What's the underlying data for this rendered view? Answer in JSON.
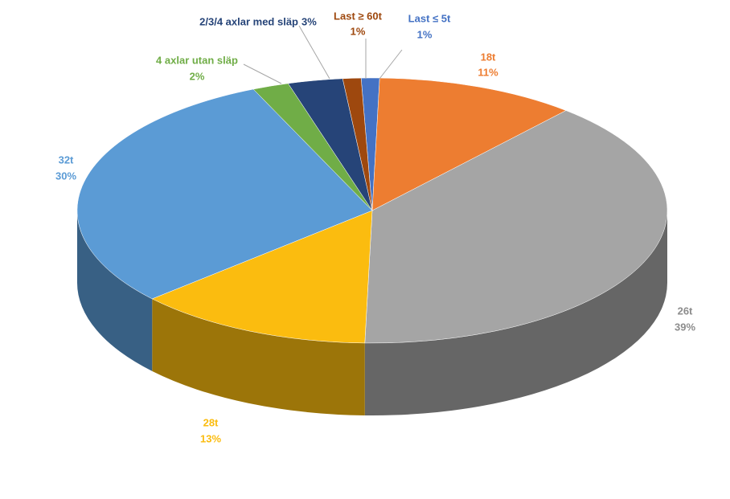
{
  "chart_data": {
    "type": "pie",
    "categories": [
      "Last ≤ 5t",
      "18t",
      "26t",
      "28t",
      "32t",
      "4 axlar utan släp",
      "2/3/4 axlar med släp",
      "Last ≥ 60t"
    ],
    "values": [
      1,
      11,
      39,
      13,
      30,
      2,
      3,
      1
    ],
    "value_labels": [
      "1%",
      "11%",
      "39%",
      "13%",
      "30%",
      "2%",
      "3%",
      "1%"
    ],
    "colors": [
      "#4472c4",
      "#ed7d31",
      "#a5a5a5",
      "#fbbc0f",
      "#5b9bd5",
      "#70ad47",
      "#264478",
      "#9e480e"
    ]
  }
}
